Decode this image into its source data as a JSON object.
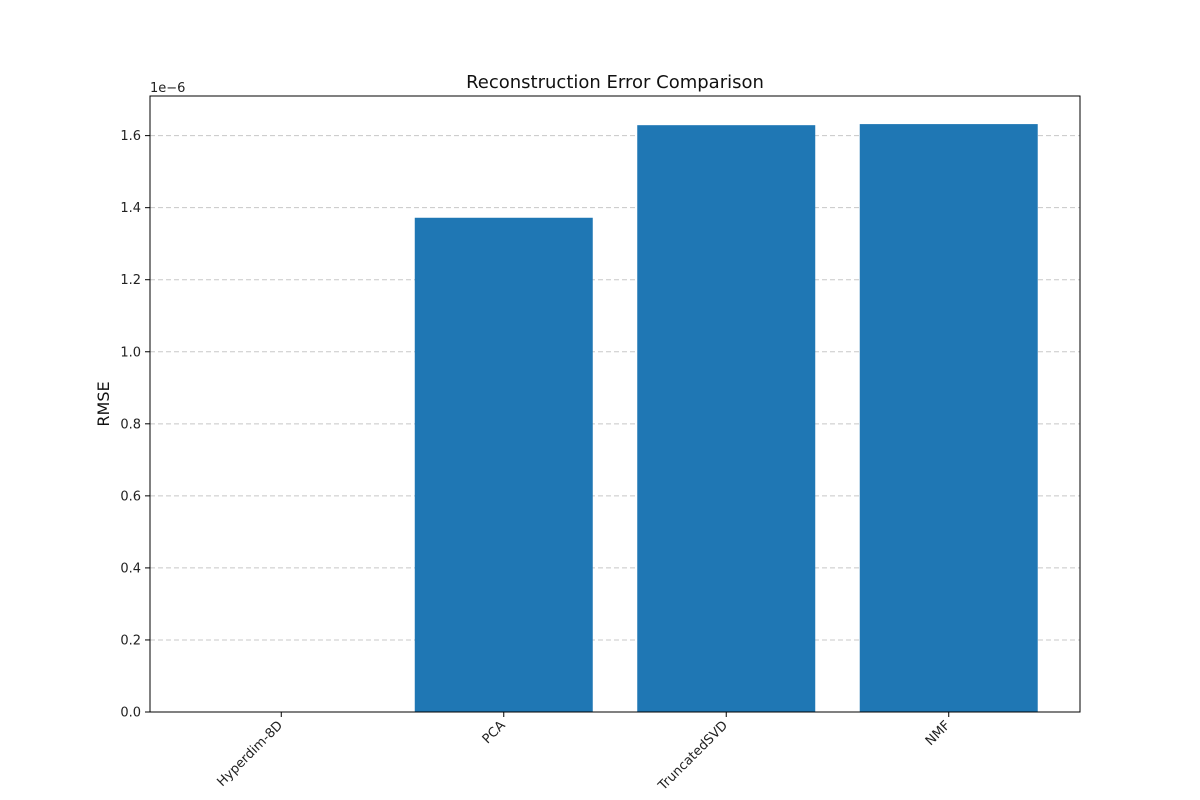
{
  "chart_data": {
    "type": "bar",
    "title": "Reconstruction Error Comparison",
    "xlabel": "",
    "ylabel": "RMSE",
    "y_offset_label": "1e−6",
    "categories": [
      "Hyperdim-8D",
      "PCA",
      "TruncatedSVD",
      "NMF"
    ],
    "values": [
      0.0,
      1.372,
      1.629,
      1.632
    ],
    "y_multiplier": 1e-06,
    "ylim": [
      0,
      1.71
    ],
    "yticks": [
      0.0,
      0.2,
      0.4,
      0.6,
      0.8,
      1.0,
      1.2,
      1.4,
      1.6
    ],
    "ytick_labels": [
      "0.0",
      "0.2",
      "0.4",
      "0.6",
      "0.8",
      "1.0",
      "1.2",
      "1.4",
      "1.6"
    ],
    "grid": "y-dashed",
    "bar_color": "#1f77b4",
    "grid_color": "#c8c8c8"
  }
}
